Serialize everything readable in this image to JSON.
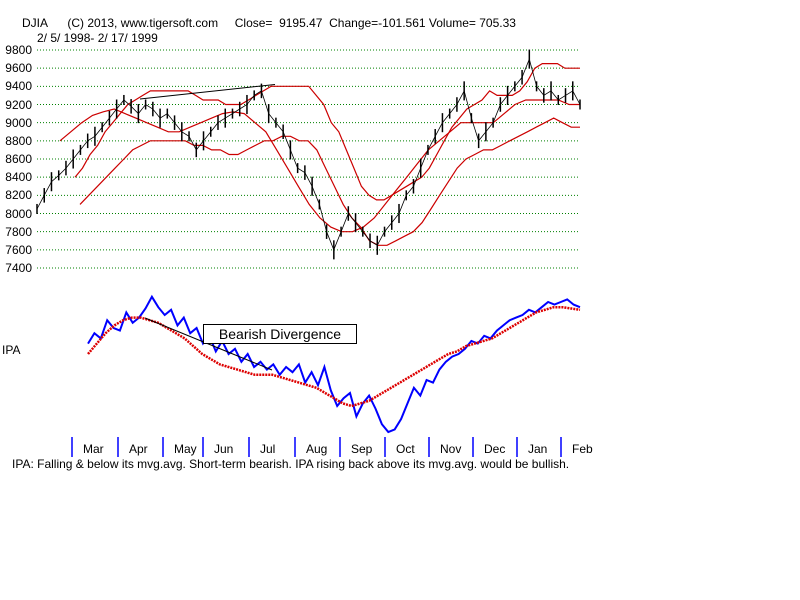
{
  "header": {
    "line1": "DJIA      (C) 2013, www.tigersoft.com     Close=  9195.47  Change=-101.561 Volume= 705.33",
    "line2": "2/ 5/ 1998- 2/ 17/ 1999"
  },
  "ipa_label": "IPA",
  "annotation": "Bearish Divergence",
  "footer": "IPA: Falling & below its mvg.avg. Short-term bearish. IPA rising back above its mvg.avg. would be bullish.",
  "colors": {
    "price": "#000000",
    "bands": "#cc0000",
    "ipa": "#0000ff",
    "ipa_ma": "#dd0000",
    "grid": "#008000",
    "month_tick": "#0000ff"
  },
  "chart_data": [
    {
      "type": "line",
      "title": "DJIA",
      "y_ticks": [
        "9800",
        "9600",
        "9400",
        "9200",
        "9000",
        "8800",
        "8600",
        "8400",
        "8200",
        "8000",
        "7800",
        "7600",
        "7400"
      ],
      "ylim": [
        7400,
        9800
      ],
      "x_ticks": [
        "Mar",
        "Apr",
        "May",
        "Jun",
        "Jul",
        "Aug",
        "Sep",
        "Oct",
        "Nov",
        "Dec",
        "Jan",
        "Feb"
      ],
      "series": [
        {
          "values": [
            8050,
            8200,
            8350,
            8420,
            8500,
            8600,
            8700,
            8800,
            8850,
            8950,
            9050,
            9150,
            9250,
            9180,
            9100,
            9200,
            9150,
            9050,
            9100,
            9000,
            8900,
            8850,
            8700,
            8800,
            8900,
            9000,
            9050,
            9100,
            9150,
            9200,
            9300,
            9350,
            9100,
            9000,
            8900,
            8700,
            8500,
            8450,
            8300,
            8100,
            7800,
            7600,
            7800,
            8000,
            7900,
            7800,
            7700,
            7650,
            7800,
            7900,
            8000,
            8200,
            8300,
            8500,
            8700,
            8850,
            9000,
            9100,
            9200,
            9350,
            9050,
            8800,
            8900,
            9000,
            9200,
            9300,
            9400,
            9500,
            9700,
            9400,
            9300,
            9350,
            9250,
            9300,
            9350,
            9200
          ]
        },
        {
          "values": [
            8400,
            8500,
            8650,
            8750,
            8900,
            9000,
            9100,
            9200,
            9250,
            9300,
            9350,
            9350,
            9350,
            9350,
            9350,
            9350,
            9300,
            9250,
            9250,
            9250,
            9200,
            9200,
            9200,
            9250,
            9300,
            9350,
            9400,
            9400,
            9400,
            9400,
            9400,
            9400,
            9300,
            9200,
            9000,
            8900,
            8700,
            8500,
            8300,
            8200,
            8150,
            8150,
            8200,
            8250,
            8300,
            8350,
            8400,
            8500,
            8650,
            8800,
            8950,
            9050,
            9150,
            9200,
            9250,
            9350,
            9300,
            9300,
            9300,
            9350,
            9450,
            9600,
            9650,
            9650,
            9650,
            9600,
            9600,
            9600
          ]
        },
        {
          "values": [
            8100,
            8200,
            8300,
            8400,
            8500,
            8600,
            8700,
            8750,
            8800,
            8800,
            8800,
            8800,
            8800,
            8750,
            8750,
            8700,
            8700,
            8650,
            8650,
            8700,
            8750,
            8800,
            8800,
            8850,
            8850,
            8800,
            8800,
            8700,
            8500,
            8300,
            8100,
            7950,
            7850,
            7700,
            7650,
            7650,
            7700,
            7750,
            7800,
            7900,
            8050,
            8200,
            8350,
            8500,
            8600,
            8650,
            8700,
            8700,
            8750,
            8800,
            8850,
            8900,
            8950,
            9000,
            9050,
            9000,
            8950,
            8950
          ]
        },
        {
          "values": [
            8800,
            8900,
            9000,
            9080,
            9120,
            9150,
            9100,
            9050,
            9000,
            8950,
            8900,
            8900,
            8950,
            9000,
            9050,
            9100,
            9120,
            9100,
            9000,
            8900,
            8700,
            8500,
            8300,
            8100,
            7950,
            7850,
            7800,
            7800,
            7850,
            7950,
            8100,
            8250,
            8400,
            8550,
            8700,
            8800,
            8900,
            9000,
            9000,
            9000,
            9000,
            9100,
            9200,
            9250,
            9250,
            9250,
            9250,
            9200,
            9200
          ]
        }
      ]
    },
    {
      "type": "line",
      "title": "IPA",
      "series": [
        {
          "values": [
            28,
            36,
            32,
            46,
            40,
            38,
            52,
            44,
            48,
            55,
            64,
            56,
            50,
            54,
            42,
            48,
            36,
            40,
            28,
            34,
            22,
            30,
            20,
            24,
            14,
            20,
            10,
            14,
            8,
            12,
            4,
            10,
            6,
            12,
            -2,
            6,
            -4,
            10,
            -8,
            -20,
            -14,
            -10,
            -28,
            -18,
            -12,
            -22,
            -34,
            -40,
            -38,
            -30,
            -18,
            -6,
            -12,
            0,
            -2,
            8,
            14,
            18,
            20,
            24,
            30,
            28,
            34,
            32,
            38,
            42,
            46,
            48,
            50,
            54,
            52,
            56,
            60,
            58,
            60,
            62,
            58,
            56
          ]
        },
        {
          "values": [
            20,
            28,
            36,
            42,
            46,
            48,
            48,
            46,
            44,
            40,
            36,
            32,
            26,
            20,
            16,
            12,
            10,
            8,
            6,
            4,
            4,
            4,
            2,
            0,
            -2,
            -4,
            -6,
            -10,
            -14,
            -18,
            -20,
            -18,
            -16,
            -12,
            -8,
            -4,
            0,
            4,
            8,
            12,
            16,
            20,
            22,
            26,
            28,
            30,
            32,
            36,
            40,
            44,
            48,
            52,
            54,
            56,
            56,
            55,
            54
          ]
        }
      ]
    }
  ]
}
